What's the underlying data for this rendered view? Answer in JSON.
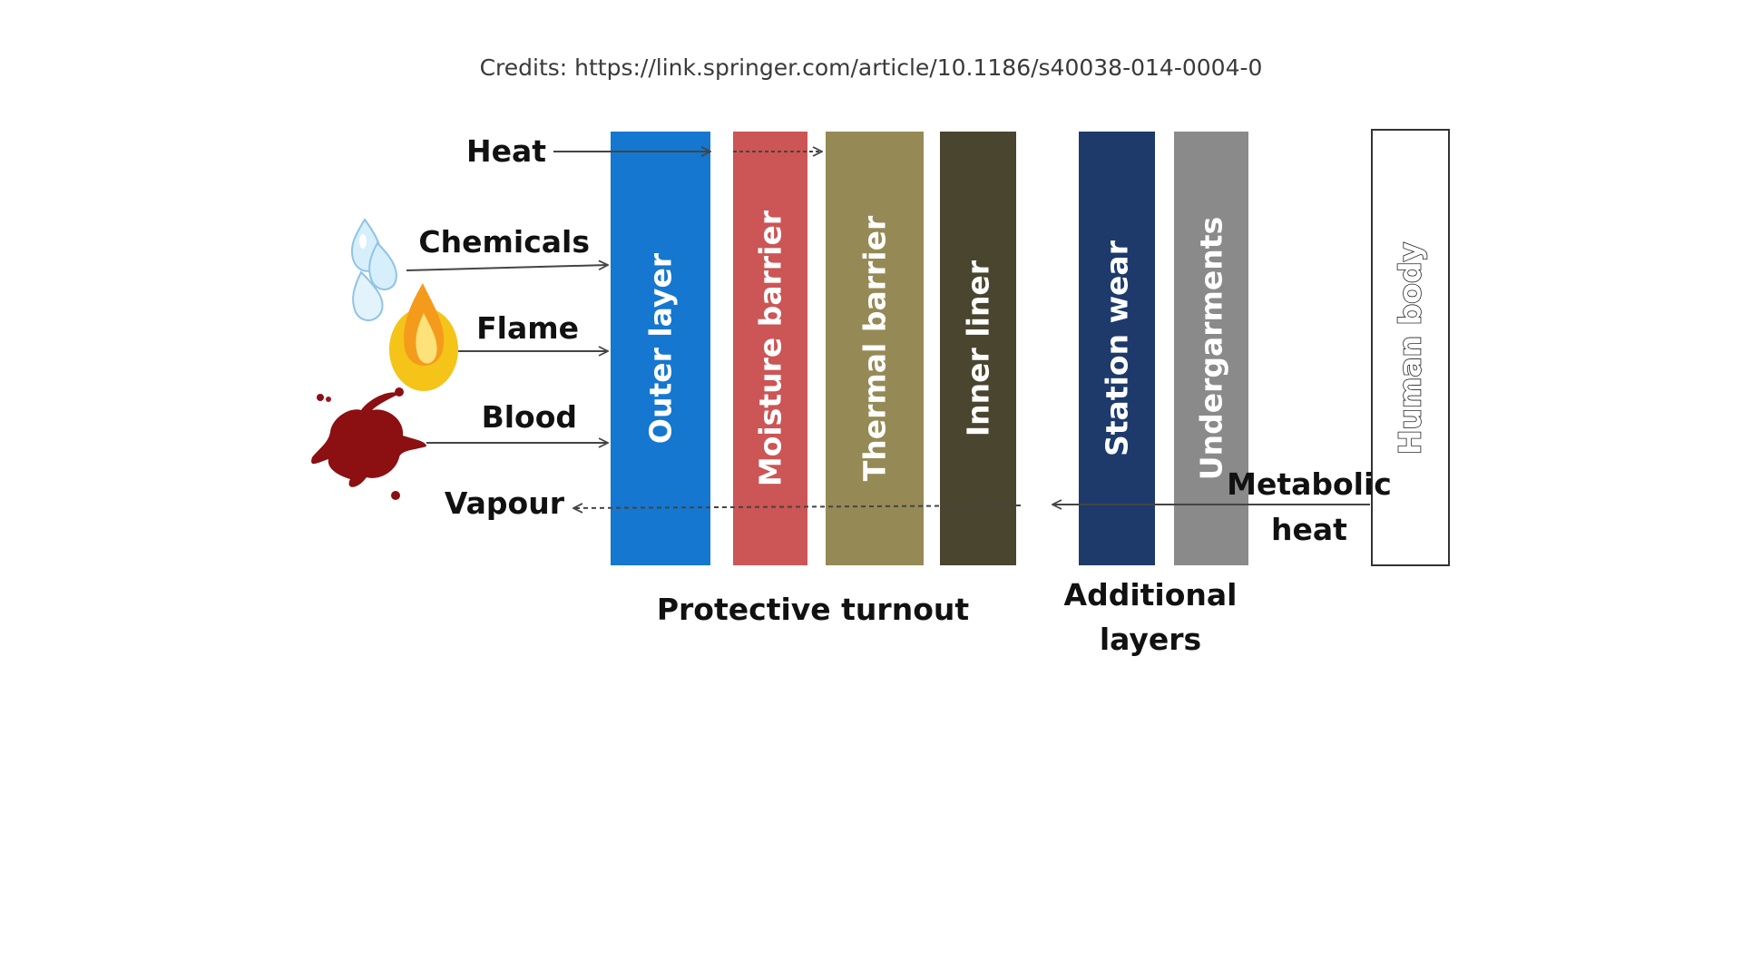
{
  "credits": "Credits: https://link.springer.com/article/10.1186/s40038-014-0004-0",
  "hazards": {
    "heat": "Heat",
    "chemicals": "Chemicals",
    "flame": "Flame",
    "blood": "Blood",
    "vapour": "Vapour",
    "metabolic_line1": "Metabolic",
    "metabolic_line2": "heat"
  },
  "layers": [
    {
      "label": "Outer layer",
      "color": "#1577cf"
    },
    {
      "label": "Moisture barrier",
      "color": "#cc5555"
    },
    {
      "label": "Thermal barrier",
      "color": "#958a56"
    },
    {
      "label": "Inner liner",
      "color": "#4a452f"
    },
    {
      "label": "Station wear",
      "color": "#1d3a6b"
    },
    {
      "label": "Undergarments",
      "color": "#8a8a8a"
    },
    {
      "label": "Human body",
      "color": "#ffffff"
    }
  ],
  "groups": {
    "protective_turnout": "Protective turnout",
    "additional_line1": "Additional",
    "additional_line2": "layers"
  },
  "icons": [
    "water-drop-icon",
    "flame-icon",
    "blood-splat-icon"
  ]
}
